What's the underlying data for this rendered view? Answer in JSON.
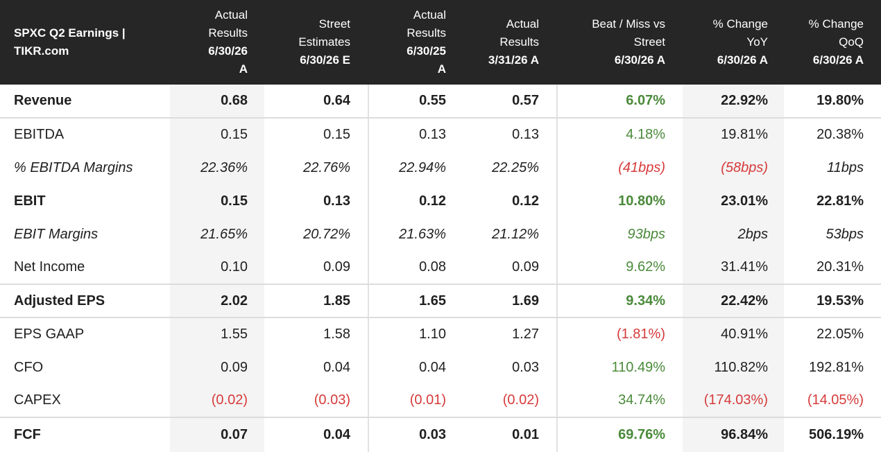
{
  "header": {
    "title_line1": "SPXC Q2 Earnings |",
    "title_line2": "TIKR.com",
    "columns": [
      [
        "Actual",
        "Results",
        "6/30/26",
        "A"
      ],
      [
        "Street",
        "Estimates",
        "6/30/26 E"
      ],
      [
        "Actual",
        "Results",
        "6/30/25",
        "A"
      ],
      [
        "Actual",
        "Results",
        "3/31/26 A"
      ],
      [
        "Beat / Miss vs",
        "Street",
        "6/30/26 A"
      ],
      [
        "% Change",
        "YoY",
        "6/30/26 A"
      ],
      [
        "% Change",
        "QoQ",
        "6/30/26 A"
      ]
    ]
  },
  "rows": [
    {
      "label": "Revenue",
      "values": [
        "0.68",
        "0.64",
        "0.55",
        "0.57",
        "6.07%",
        "22.92%",
        "19.80%"
      ]
    },
    {
      "label": "EBITDA",
      "values": [
        "0.15",
        "0.15",
        "0.13",
        "0.13",
        "4.18%",
        "19.81%",
        "20.38%"
      ]
    },
    {
      "label": "% EBITDA Margins",
      "values": [
        "22.36%",
        "22.76%",
        "22.94%",
        "22.25%",
        "(41bps)",
        "(58bps)",
        "11bps"
      ]
    },
    {
      "label": "EBIT",
      "values": [
        "0.15",
        "0.13",
        "0.12",
        "0.12",
        "10.80%",
        "23.01%",
        "22.81%"
      ]
    },
    {
      "label": "EBIT Margins",
      "values": [
        "21.65%",
        "20.72%",
        "21.63%",
        "21.12%",
        "93bps",
        "2bps",
        "53bps"
      ]
    },
    {
      "label": "Net Income",
      "values": [
        "0.10",
        "0.09",
        "0.08",
        "0.09",
        "9.62%",
        "31.41%",
        "20.31%"
      ]
    },
    {
      "label": "Adjusted EPS",
      "values": [
        "2.02",
        "1.85",
        "1.65",
        "1.69",
        "9.34%",
        "22.42%",
        "19.53%"
      ]
    },
    {
      "label": "EPS GAAP",
      "values": [
        "1.55",
        "1.58",
        "1.10",
        "1.27",
        "(1.81%)",
        "40.91%",
        "22.05%"
      ]
    },
    {
      "label": "CFO",
      "values": [
        "0.09",
        "0.04",
        "0.04",
        "0.03",
        "110.49%",
        "110.82%",
        "192.81%"
      ]
    },
    {
      "label": "CAPEX",
      "values": [
        "(0.02)",
        "(0.03)",
        "(0.01)",
        "(0.02)",
        "34.74%",
        "(174.03%)",
        "(14.05%)"
      ]
    },
    {
      "label": "FCF",
      "values": [
        "0.07",
        "0.04",
        "0.03",
        "0.01",
        "69.76%",
        "96.84%",
        "506.19%"
      ]
    }
  ],
  "colors": {
    "header_bg": "#262626",
    "positive": "#4a8a3a",
    "negative": "#d63b3b",
    "shade": "#f4f4f4"
  }
}
